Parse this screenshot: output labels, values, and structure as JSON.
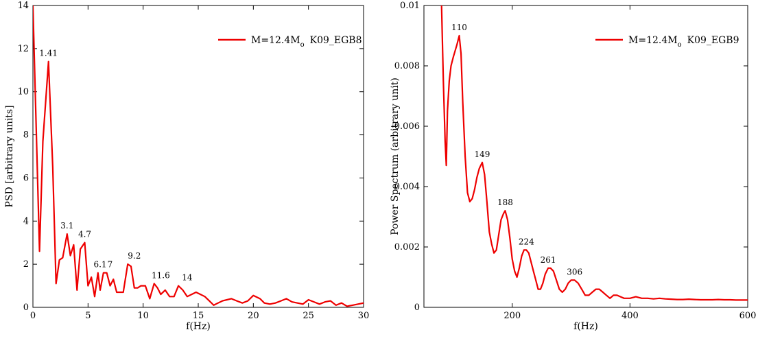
{
  "chart_data": [
    {
      "type": "line",
      "xlabel": "f(Hz)",
      "ylabel": "PSD [arbitrary units]",
      "xlim": [
        0,
        30
      ],
      "ylim": [
        0,
        14
      ],
      "xticks": [
        0,
        5,
        10,
        15,
        20,
        25,
        30
      ],
      "yticks": [
        0,
        2,
        4,
        6,
        8,
        10,
        12,
        14
      ],
      "grid": false,
      "legend_position": "top-right",
      "color": "#ee0000",
      "series": [
        {
          "name": "M=12.4M",
          "name_sub": "o",
          "name_suffix": "K09_EGB8",
          "x": [
            0,
            0.6,
            0.9,
            1.41,
            1.8,
            2.1,
            2.4,
            2.7,
            3.1,
            3.4,
            3.7,
            4.0,
            4.3,
            4.7,
            5.0,
            5.3,
            5.6,
            5.9,
            6.1,
            6.4,
            6.7,
            7.0,
            7.3,
            7.6,
            7.9,
            8.2,
            8.6,
            8.9,
            9.2,
            9.5,
            9.8,
            10.2,
            10.6,
            11.0,
            11.3,
            11.6,
            12.0,
            12.4,
            12.8,
            13.2,
            13.6,
            14.0,
            14.4,
            14.8,
            15.2,
            15.6,
            16.0,
            16.4,
            16.8,
            17.2,
            17.6,
            18.0,
            18.5,
            19.0,
            19.5,
            20.0,
            20.6,
            21.0,
            21.5,
            22.0,
            22.5,
            23.0,
            23.5,
            24.0,
            24.5,
            25.0,
            25.5,
            26.0,
            26.5,
            27.0,
            27.5,
            28.0,
            28.5,
            29.0,
            29.5,
            30.0
          ],
          "y": [
            14,
            2.6,
            7.7,
            11.4,
            6.5,
            1.1,
            2.2,
            2.3,
            3.4,
            2.4,
            2.9,
            0.8,
            2.7,
            3.0,
            1.0,
            1.4,
            0.5,
            1.6,
            0.8,
            1.6,
            1.6,
            1.0,
            1.3,
            0.7,
            0.7,
            0.7,
            2.0,
            1.9,
            0.9,
            0.9,
            1.0,
            1.0,
            0.4,
            1.1,
            0.9,
            0.6,
            0.8,
            0.5,
            0.5,
            1.0,
            0.8,
            0.5,
            0.6,
            0.7,
            0.6,
            0.5,
            0.3,
            0.1,
            0.2,
            0.3,
            0.35,
            0.4,
            0.3,
            0.2,
            0.3,
            0.55,
            0.4,
            0.2,
            0.15,
            0.2,
            0.3,
            0.4,
            0.25,
            0.2,
            0.15,
            0.35,
            0.25,
            0.15,
            0.25,
            0.3,
            0.1,
            0.2,
            0.05,
            0.1,
            0.15,
            0.2
          ]
        }
      ],
      "annotations": [
        {
          "text": "1.41",
          "x": 1.41,
          "y": 11.4
        },
        {
          "text": "3.1",
          "x": 3.1,
          "y": 3.4
        },
        {
          "text": "4.7",
          "x": 4.7,
          "y": 3.0
        },
        {
          "text": "6.1",
          "x": 6.1,
          "y": 1.6
        },
        {
          "text": "7",
          "x": 7.0,
          "y": 1.6
        },
        {
          "text": "9.2",
          "x": 9.2,
          "y": 2.0
        },
        {
          "text": "11.6",
          "x": 11.6,
          "y": 1.1
        },
        {
          "text": "14",
          "x": 14.0,
          "y": 1.0
        }
      ]
    },
    {
      "type": "line",
      "xlabel": "f(Hz)",
      "ylabel": "Power Spectrum (arbitrary unit)",
      "xlim": [
        50,
        600
      ],
      "ylim": [
        0,
        0.01
      ],
      "xticks": [
        200,
        400,
        600
      ],
      "yticks": [
        0,
        0.002,
        0.004,
        0.006,
        0.008,
        0.01
      ],
      "ytick_labels": [
        "0",
        "0.002",
        "0.004",
        "0.006",
        "0.008",
        "0.01"
      ],
      "grid": false,
      "legend_position": "top-right",
      "color": "#ee0000",
      "series": [
        {
          "name": "M=12.4M",
          "name_sub": "o",
          "name_suffix": "K09_EGB9",
          "x": [
            80,
            83,
            86,
            88,
            90,
            93,
            96,
            100,
            103,
            106,
            110,
            113,
            116,
            120,
            124,
            128,
            132,
            136,
            140,
            144,
            149,
            153,
            157,
            161,
            165,
            169,
            173,
            177,
            181,
            185,
            188,
            192,
            196,
            200,
            204,
            208,
            212,
            216,
            220,
            224,
            228,
            232,
            236,
            240,
            244,
            248,
            252,
            256,
            261,
            265,
            270,
            275,
            280,
            285,
            290,
            295,
            300,
            306,
            312,
            318,
            324,
            330,
            336,
            342,
            348,
            354,
            360,
            366,
            372,
            378,
            384,
            390,
            400,
            410,
            420,
            430,
            440,
            450,
            460,
            470,
            480,
            490,
            500,
            510,
            520,
            530,
            540,
            550,
            560,
            570,
            580,
            590,
            600
          ],
          "y": [
            0.01,
            0.0075,
            0.0055,
            0.0047,
            0.0065,
            0.0075,
            0.008,
            0.0083,
            0.0085,
            0.0087,
            0.009,
            0.0084,
            0.0068,
            0.005,
            0.0038,
            0.0035,
            0.0036,
            0.0039,
            0.0043,
            0.0046,
            0.0048,
            0.0044,
            0.0035,
            0.0025,
            0.0021,
            0.0018,
            0.0019,
            0.0024,
            0.0029,
            0.0031,
            0.0032,
            0.0029,
            0.0023,
            0.0016,
            0.0012,
            0.001,
            0.0013,
            0.0017,
            0.0019,
            0.0019,
            0.0018,
            0.0015,
            0.0012,
            0.0009,
            0.0006,
            0.0006,
            0.0008,
            0.0011,
            0.0013,
            0.0013,
            0.0012,
            0.0009,
            0.0006,
            0.0005,
            0.0006,
            0.0008,
            0.0009,
            0.0009,
            0.0008,
            0.0006,
            0.0004,
            0.0004,
            0.0005,
            0.0006,
            0.0006,
            0.0005,
            0.0004,
            0.0003,
            0.0004,
            0.0004,
            0.00035,
            0.0003,
            0.0003,
            0.00035,
            0.0003,
            0.0003,
            0.00028,
            0.0003,
            0.00028,
            0.00027,
            0.00026,
            0.00026,
            0.00027,
            0.00026,
            0.00025,
            0.00025,
            0.00025,
            0.00026,
            0.00025,
            0.00025,
            0.00024,
            0.00024,
            0.00024
          ]
        }
      ],
      "annotations": [
        {
          "text": "110",
          "x": 110,
          "y": 0.009
        },
        {
          "text": "149",
          "x": 149,
          "y": 0.0048
        },
        {
          "text": "188",
          "x": 188,
          "y": 0.0032
        },
        {
          "text": "224",
          "x": 224,
          "y": 0.0019
        },
        {
          "text": "261",
          "x": 261,
          "y": 0.0013
        },
        {
          "text": "306",
          "x": 306,
          "y": 0.0009
        }
      ]
    }
  ]
}
